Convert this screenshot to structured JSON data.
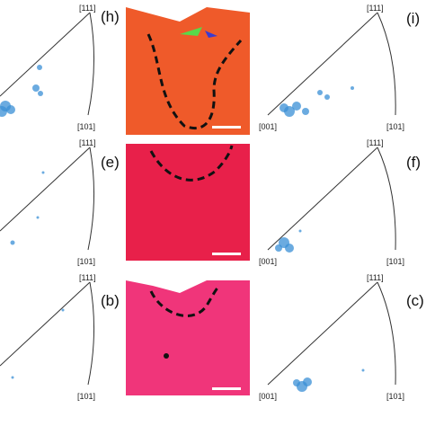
{
  "rows": [
    {
      "panel": "(h)",
      "left": {
        "top": "[111]",
        "right": "[101]"
      },
      "right": {
        "label": "(i)",
        "top": "[111]",
        "origin": "[001]",
        "corner": "[101]"
      }
    },
    {
      "panel": "(e)",
      "left": {
        "top": "[111]",
        "right": "[101]"
      },
      "right": {
        "label": "(f)",
        "top": "[111]",
        "origin": "[001]",
        "corner": "[101]"
      }
    },
    {
      "panel": "(b)",
      "left": {
        "top": "[111]",
        "right": "[101]"
      },
      "right": {
        "label": "(c)",
        "top": "[111]",
        "origin": "[001]",
        "corner": "[101]"
      }
    }
  ]
}
